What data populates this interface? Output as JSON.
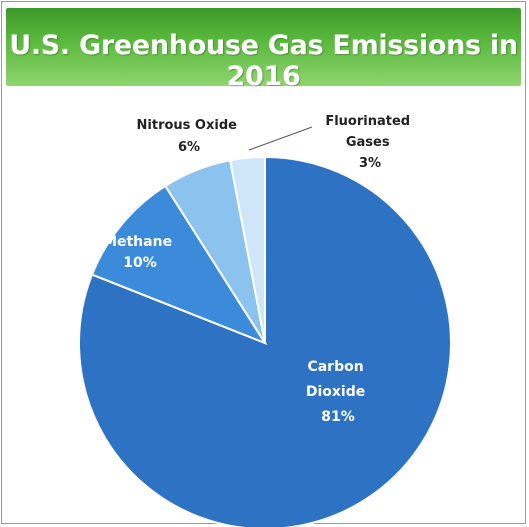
{
  "chart_data": {
    "type": "pie",
    "title": "U.S. Greenhouse Gas Emissions in 2016",
    "slices": [
      {
        "name_lines": [
          "Carbon",
          "Dioxide"
        ],
        "value": 81,
        "label": "81%",
        "color": "#2e72c4"
      },
      {
        "name_lines": [
          "Methane"
        ],
        "value": 10,
        "label": "10%",
        "color": "#3c8bdb"
      },
      {
        "name_lines": [
          "Nitrous Oxide"
        ],
        "value": 6,
        "label": "6%",
        "color": "#8cc3ee"
      },
      {
        "name_lines": [
          "Fluorinated",
          "Gases"
        ],
        "value": 3,
        "label": "3%",
        "color": "#cfe5f8"
      }
    ]
  }
}
